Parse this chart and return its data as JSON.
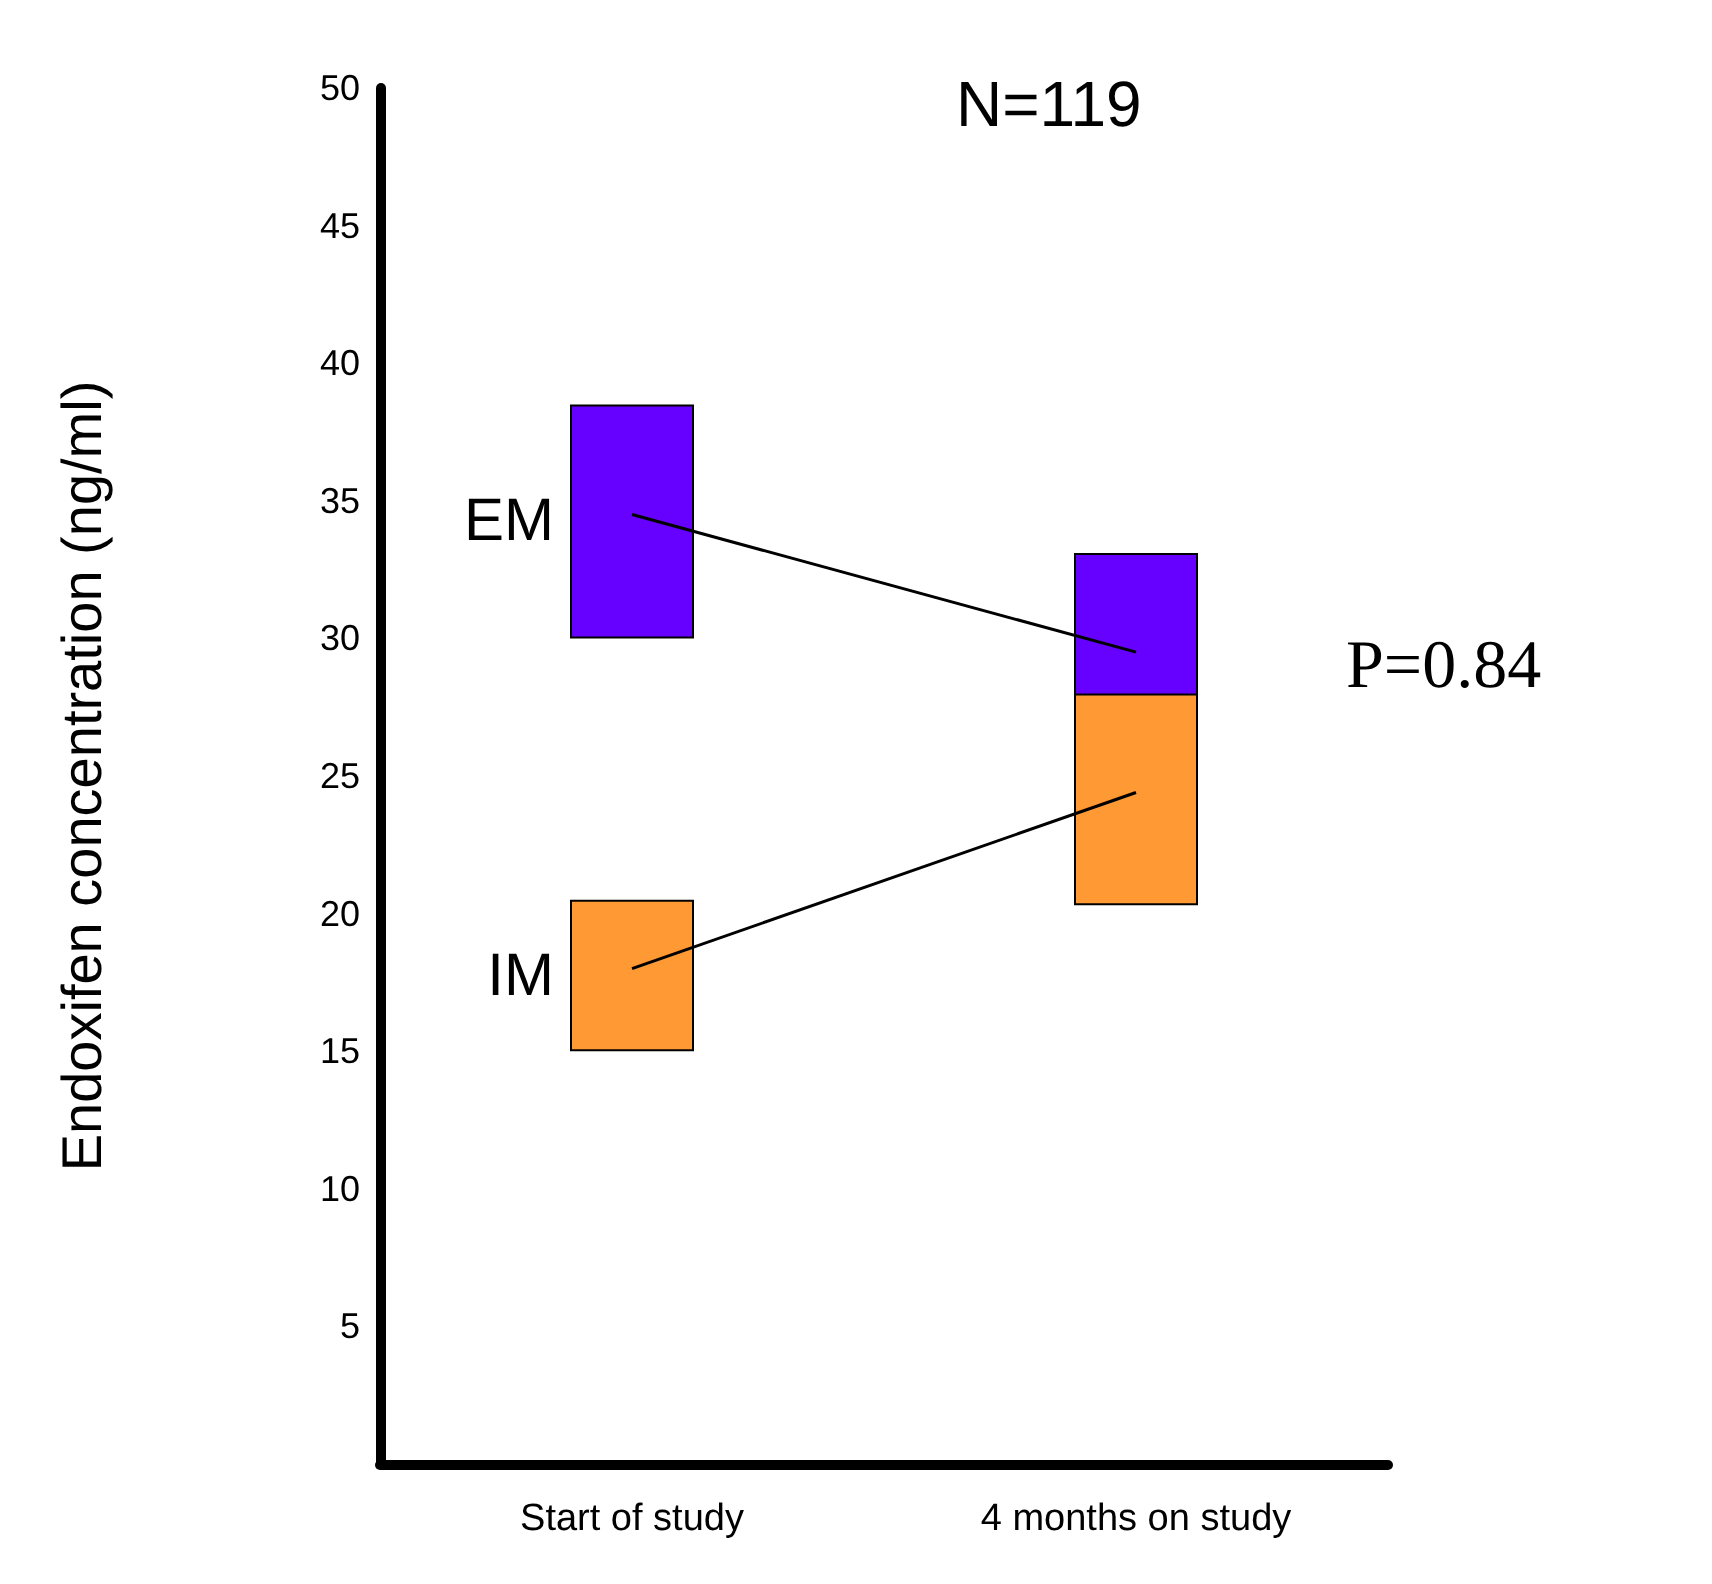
{
  "chart_data": {
    "type": "bar",
    "ylabel": "Endoxifen concentration (ng/ml)",
    "categories": [
      "Start of study",
      "4 months on study"
    ],
    "series": [
      {
        "name": "EM",
        "color": "#6600ff",
        "base": [
          30,
          27
        ],
        "values": [
          8.5,
          6.1
        ]
      },
      {
        "name": "IM",
        "color": "#ff9933",
        "base": [
          15,
          20.3
        ],
        "values": [
          5.5,
          7.7
        ]
      },
      {
        "type": "line",
        "color": "#000000",
        "values": [
          34.5,
          29.5
        ]
      },
      {
        "type": "line",
        "color": "#000000",
        "values": [
          18,
          24.4
        ]
      }
    ],
    "ylim": [
      0,
      50
    ],
    "yticks": [
      5,
      10,
      15,
      20,
      25,
      30,
      35,
      40,
      45,
      50
    ],
    "annotations": [
      "N=119",
      "P=0.84"
    ],
    "grid": false,
    "legend": false
  }
}
